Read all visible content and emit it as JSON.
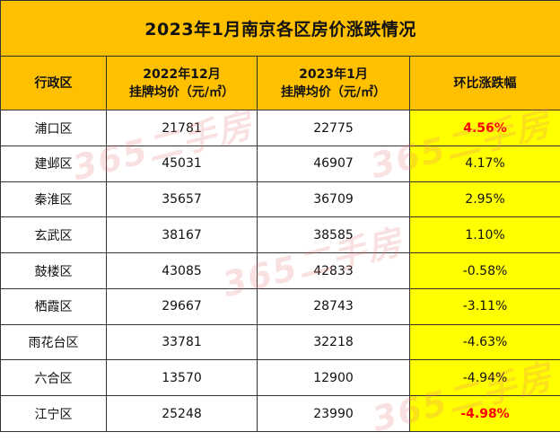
{
  "title": "2023年1月南京各区房价涨跌情况",
  "headers": {
    "district": "行政区",
    "dec_line1": "2022年12月",
    "dec_line2": "挂牌均价（元/㎡）",
    "jan_line1": "2023年1月",
    "jan_line2": "挂牌均价（元/㎡）",
    "change": "环比涨跌幅"
  },
  "rows": [
    {
      "district": "浦口区",
      "dec": "21781",
      "jan": "22775",
      "change": "4.56%",
      "highlight": true
    },
    {
      "district": "建邺区",
      "dec": "45031",
      "jan": "46907",
      "change": "4.17%",
      "highlight": false
    },
    {
      "district": "秦淮区",
      "dec": "35657",
      "jan": "36709",
      "change": "2.95%",
      "highlight": false
    },
    {
      "district": "玄武区",
      "dec": "38167",
      "jan": "38585",
      "change": "1.10%",
      "highlight": false
    },
    {
      "district": "鼓楼区",
      "dec": "43085",
      "jan": "42833",
      "change": "-0.58%",
      "highlight": false
    },
    {
      "district": "栖霞区",
      "dec": "29667",
      "jan": "28743",
      "change": "-3.11%",
      "highlight": false
    },
    {
      "district": "雨花台区",
      "dec": "33781",
      "jan": "32218",
      "change": "-4.63%",
      "highlight": false
    },
    {
      "district": "六合区",
      "dec": "13570",
      "jan": "12900",
      "change": "-4.94%",
      "highlight": false
    },
    {
      "district": "江宁区",
      "dec": "25248",
      "jan": "23990",
      "change": "-4.98%",
      "highlight": true
    }
  ],
  "watermark": {
    "text": "365二手房"
  },
  "colors": {
    "header_bg": "#ffc000",
    "change_col_bg": "#ffff00",
    "highlight_text": "#ff0000"
  }
}
